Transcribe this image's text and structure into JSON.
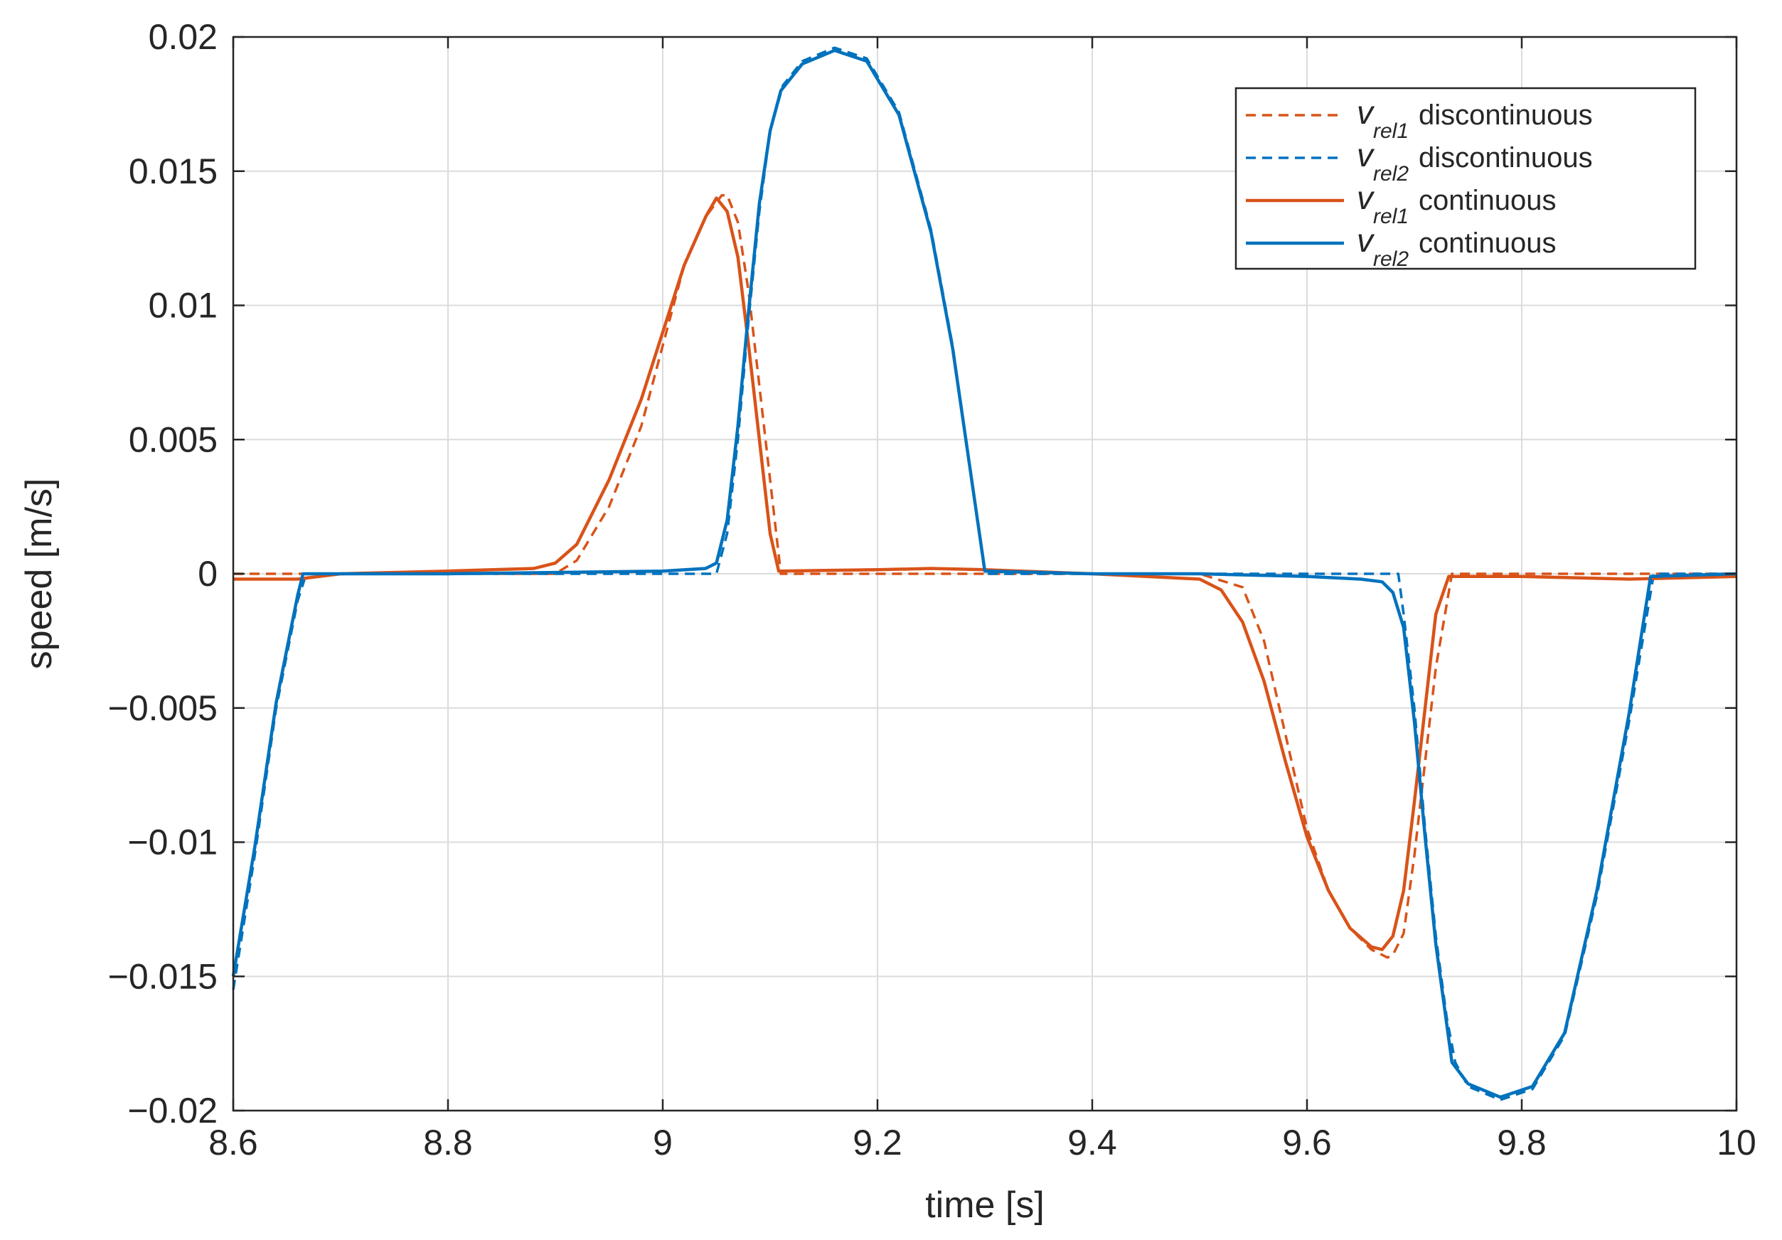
{
  "chart_data": {
    "type": "line",
    "title": "",
    "xlabel": "time [s]",
    "ylabel": "speed [m/s]",
    "xlim": [
      8.6,
      10
    ],
    "ylim": [
      -0.02,
      0.02
    ],
    "grid": true,
    "legend_position": "top-right",
    "x_ticks": [
      8.6,
      8.8,
      9.0,
      9.2,
      9.4,
      9.6,
      9.8,
      10.0
    ],
    "x_tick_labels": [
      "8.6",
      "8.8",
      "9",
      "9.2",
      "9.4",
      "9.6",
      "9.8",
      "10"
    ],
    "y_ticks": [
      -0.02,
      -0.015,
      -0.01,
      -0.005,
      0,
      0.005,
      0.01,
      0.015,
      0.02
    ],
    "y_tick_labels": [
      "−0.02",
      "−0.015",
      "−0.01",
      "−0.005",
      "0",
      "0.005",
      "0.01",
      "0.015",
      "0.02"
    ],
    "series": [
      {
        "name": "discontinuous",
        "legend_symbol": "v",
        "legend_subscript": "rel1",
        "color": "#D95319",
        "style": "dashed",
        "x": [
          8.6,
          8.66,
          8.7,
          8.8,
          8.9,
          8.92,
          8.95,
          8.98,
          9.0,
          9.02,
          9.04,
          9.055,
          9.06,
          9.07,
          9.08,
          9.09,
          9.1,
          9.11,
          9.2,
          9.3,
          9.4,
          9.5,
          9.54,
          9.56,
          9.58,
          9.6,
          9.62,
          9.64,
          9.66,
          9.675,
          9.68,
          9.69,
          9.7,
          9.71,
          9.72,
          9.735,
          9.8,
          9.9,
          10.0
        ],
        "y": [
          0.0,
          0.0,
          0.0,
          0.0,
          0.0,
          0.0005,
          0.0025,
          0.0055,
          0.0085,
          0.0115,
          0.0133,
          0.0141,
          0.0141,
          0.0131,
          0.0105,
          0.007,
          0.0035,
          0.0,
          0.0,
          0.0,
          0.0,
          0.0,
          -0.0005,
          -0.0025,
          -0.006,
          -0.0095,
          -0.0118,
          -0.0132,
          -0.014,
          -0.0143,
          -0.0142,
          -0.0134,
          -0.0105,
          -0.007,
          -0.0035,
          0.0,
          0.0,
          0.0,
          0.0
        ]
      },
      {
        "name": "discontinuous",
        "legend_symbol": "v",
        "legend_subscript": "rel2",
        "color": "#0072BD",
        "style": "dashed",
        "x": [
          8.6,
          8.62,
          8.64,
          8.66,
          8.668,
          8.8,
          9.0,
          9.05,
          9.06,
          9.07,
          9.08,
          9.09,
          9.1,
          9.112,
          9.13,
          9.16,
          9.19,
          9.22,
          9.25,
          9.27,
          9.3,
          9.4,
          9.5,
          9.6,
          9.685,
          9.69,
          9.7,
          9.71,
          9.72,
          9.73,
          9.738,
          9.75,
          9.78,
          9.81,
          9.84,
          9.87,
          9.9,
          9.923,
          10.0
        ],
        "y": [
          -0.0155,
          -0.0105,
          -0.005,
          -0.001,
          0.0,
          0.0,
          0.0,
          0.0,
          0.0015,
          0.005,
          0.0095,
          0.0135,
          0.0165,
          0.0182,
          0.0191,
          0.0196,
          0.0192,
          0.0172,
          0.0128,
          0.0085,
          0.0,
          0.0,
          0.0,
          0.0,
          0.0,
          -0.0015,
          -0.005,
          -0.0095,
          -0.0135,
          -0.0165,
          -0.0182,
          -0.0191,
          -0.0196,
          -0.0192,
          -0.0172,
          -0.012,
          -0.0055,
          0.0,
          0.0
        ]
      },
      {
        "name": "continuous",
        "legend_symbol": "v",
        "legend_subscript": "rel1",
        "color": "#D95319",
        "style": "solid",
        "x": [
          8.6,
          8.66,
          8.7,
          8.8,
          8.88,
          8.9,
          8.92,
          8.95,
          8.98,
          9.0,
          9.02,
          9.04,
          9.05,
          9.06,
          9.07,
          9.08,
          9.09,
          9.1,
          9.108,
          9.2,
          9.25,
          9.3,
          9.4,
          9.5,
          9.52,
          9.54,
          9.56,
          9.58,
          9.6,
          9.62,
          9.64,
          9.66,
          9.67,
          9.68,
          9.69,
          9.7,
          9.71,
          9.72,
          9.732,
          9.8,
          9.9,
          10.0
        ],
        "y": [
          -0.0002,
          -0.0002,
          0.0,
          0.0001,
          0.0002,
          0.0004,
          0.0011,
          0.0035,
          0.0065,
          0.009,
          0.0115,
          0.0133,
          0.014,
          0.0135,
          0.0118,
          0.0085,
          0.005,
          0.0015,
          0.0001,
          0.00015,
          0.0002,
          0.00015,
          0.0,
          -0.0002,
          -0.0006,
          -0.0018,
          -0.004,
          -0.007,
          -0.0098,
          -0.0118,
          -0.0132,
          -0.0139,
          -0.014,
          -0.0135,
          -0.0118,
          -0.0085,
          -0.005,
          -0.0015,
          -0.0001,
          -0.0001,
          -0.0002,
          -0.0001
        ]
      },
      {
        "name": "continuous",
        "legend_symbol": "v",
        "legend_subscript": "rel2",
        "color": "#0072BD",
        "style": "solid",
        "x": [
          8.6,
          8.62,
          8.64,
          8.66,
          8.665,
          8.8,
          9.0,
          9.04,
          9.05,
          9.06,
          9.07,
          9.08,
          9.09,
          9.1,
          9.11,
          9.13,
          9.16,
          9.19,
          9.22,
          9.25,
          9.27,
          9.3,
          9.4,
          9.5,
          9.6,
          9.65,
          9.67,
          9.68,
          9.69,
          9.7,
          9.71,
          9.72,
          9.735,
          9.75,
          9.78,
          9.81,
          9.84,
          9.87,
          9.9,
          9.92,
          10.0
        ],
        "y": [
          -0.015,
          -0.0102,
          -0.0048,
          -0.0008,
          0.0,
          0.0,
          0.0001,
          0.0002,
          0.0004,
          0.002,
          0.0055,
          0.0098,
          0.0138,
          0.0165,
          0.018,
          0.019,
          0.0195,
          0.0191,
          0.0171,
          0.0127,
          0.0084,
          0.0001,
          0.0,
          0.0,
          -0.0001,
          -0.0002,
          -0.0003,
          -0.0007,
          -0.002,
          -0.0055,
          -0.0098,
          -0.0138,
          -0.0182,
          -0.019,
          -0.0195,
          -0.0191,
          -0.0171,
          -0.0118,
          -0.0052,
          -0.0001,
          0.0
        ]
      }
    ]
  }
}
